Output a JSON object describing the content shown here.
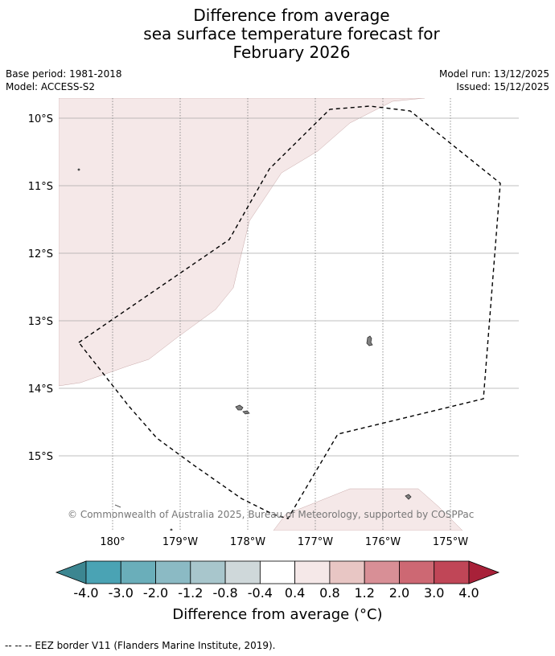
{
  "title": {
    "line1": "Difference from average",
    "line2": "sea surface temperature forecast for",
    "line3": "February 2026"
  },
  "meta": {
    "base_period": "Base period: 1981-2018",
    "model": "Model: ACCESS-S2",
    "model_run": "Model run: 13/12/2025",
    "issued": "Issued: 15/12/2025"
  },
  "map": {
    "lat_labels": [
      "10°S",
      "11°S",
      "12°S",
      "13°S",
      "14°S",
      "15°S"
    ],
    "lon_labels": [
      "180°",
      "179°W",
      "178°W",
      "177°W",
      "176°W",
      "175°W"
    ],
    "anomaly_fill_color": "#f5e8e8",
    "land_color": "#808080",
    "copyright": "© Commonwealth of Australia 2025, Bureau of Meteorology, supported by COSPPac"
  },
  "colorbar": {
    "labels": [
      "-4.0",
      "-3.0",
      "-2.0",
      "-1.2",
      "-0.8",
      "-0.4",
      "0.4",
      "0.8",
      "1.2",
      "2.0",
      "3.0",
      "4.0"
    ],
    "colors": [
      "#3c8691",
      "#4aa3b4",
      "#6aaeba",
      "#8bbac4",
      "#a8c6cc",
      "#cfd8da",
      "#ffffff",
      "#f5e8e8",
      "#e8c6c4",
      "#d88f96",
      "#cd6873",
      "#c04657",
      "#a82139"
    ],
    "title": "Difference from average (°C)"
  },
  "footnote": "--  --  -- EEZ border V11 (Flanders Marine Institute, 2019)."
}
